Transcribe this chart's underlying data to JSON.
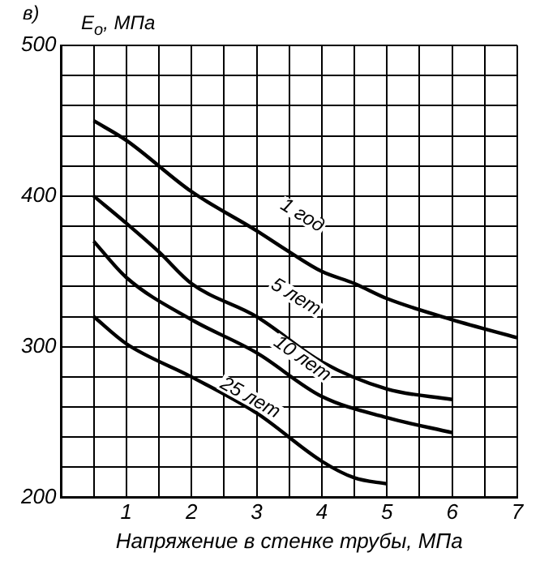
{
  "chart_data": {
    "type": "line",
    "xlabel": "Напряжение в стенке трубы, МПа",
    "ylabel": "E$_{o}$, МПа",
    "xlim": [
      0,
      7
    ],
    "ylim": [
      200,
      500
    ],
    "xticks": [
      {
        "value": 0,
        "label": null
      },
      {
        "value": 0.5,
        "label": null
      },
      1,
      {
        "value": 1.5,
        "label": null
      },
      2,
      {
        "value": 2.5,
        "label": null
      },
      3,
      {
        "value": 3.5,
        "label": null
      },
      4,
      {
        "value": 4.5,
        "label": null
      },
      5,
      {
        "value": 5.5,
        "label": null
      },
      6,
      {
        "value": 6.5,
        "label": null
      },
      7
    ],
    "yticks": [
      200,
      {
        "value": 220,
        "label": null
      },
      {
        "value": 240,
        "label": null
      },
      {
        "value": 260,
        "label": null
      },
      {
        "value": 280,
        "label": null
      },
      300,
      {
        "value": 320,
        "label": null
      },
      {
        "value": 340,
        "label": null
      },
      {
        "value": 360,
        "label": null
      },
      {
        "value": 380,
        "label": null
      },
      400,
      {
        "value": 420,
        "label": null
      },
      {
        "value": 440,
        "label": null
      },
      {
        "value": 460,
        "label": null
      },
      {
        "value": 480,
        "label": null
      },
      500
    ],
    "grid": true,
    "legend": false,
    "marker": "none",
    "line_style": "solid",
    "series": [
      {
        "color": "#000000",
        "x": [
          0.5,
          1,
          2,
          3,
          3.5,
          4,
          4.5,
          5,
          6,
          7
        ],
        "values": [
          450,
          437,
          403,
          377,
          363,
          350,
          342,
          332,
          318,
          306
        ]
      },
      {
        "color": "#000000",
        "x": [
          0.5,
          1,
          1.5,
          2,
          3,
          4,
          5,
          6
        ],
        "values": [
          400,
          382,
          363,
          342,
          320,
          290,
          272,
          265
        ]
      },
      {
        "color": "#000000",
        "x": [
          0.5,
          1,
          2,
          3,
          4,
          5,
          6
        ],
        "values": [
          370,
          346,
          318,
          296,
          267,
          253,
          243
        ]
      },
      {
        "color": "#000000",
        "x": [
          0.5,
          1,
          2,
          3,
          4,
          4.5,
          5
        ],
        "values": [
          320,
          302,
          280,
          256,
          224,
          213,
          209
        ]
      }
    ],
    "annotations": [
      "в)",
      {
        "text": "1 год",
        "x": 3.7,
        "y": 387
      },
      {
        "text": "5 лет",
        "x": 3.6,
        "y": 333
      },
      {
        "text": "10 лет",
        "x": 3.7,
        "y": 292
      },
      {
        "text": "25 лет",
        "x": 2.9,
        "y": 266
      }
    ]
  }
}
